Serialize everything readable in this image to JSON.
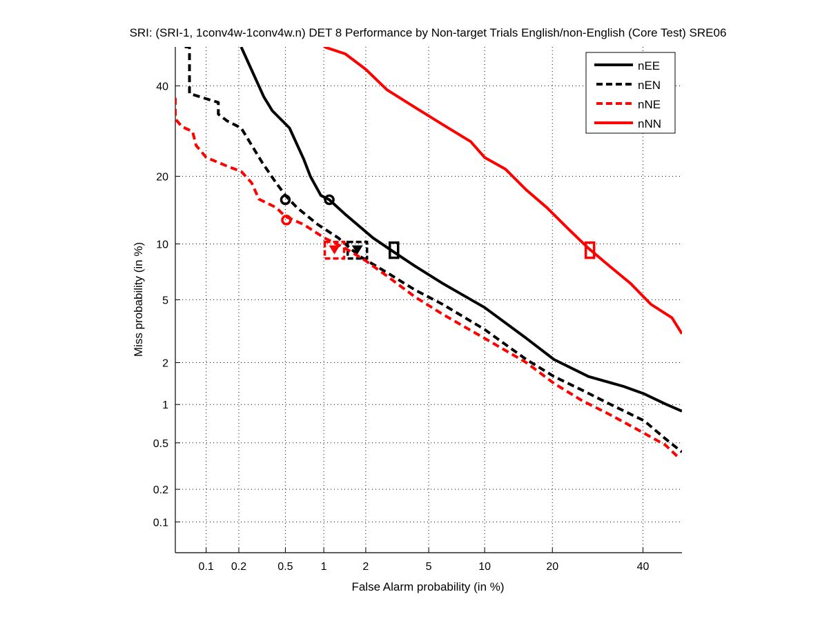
{
  "chart_data": {
    "type": "line",
    "title": "SRI: (SRI-1, 1conv4w-1conv4w.n) DET 8 Performance by Non-target Trials English/non-English (Core Test) SRE06",
    "xlabel": "False Alarm probability (in %)",
    "ylabel": "Miss probability (in %)",
    "scale": "normal-deviate",
    "xlim": [
      0.05,
      50
    ],
    "ylim": [
      0.05,
      50
    ],
    "grid": true,
    "x_ticks": [
      0.1,
      0.2,
      0.5,
      1,
      2,
      5,
      10,
      20,
      40
    ],
    "x_tick_labels": [
      "0.1",
      "0.2",
      "0.5",
      "1",
      "2",
      "5",
      "10",
      "20",
      "40"
    ],
    "y_ticks": [
      0.1,
      0.2,
      0.5,
      1,
      2,
      5,
      10,
      20,
      40
    ],
    "y_tick_labels": [
      "0.1",
      "0.2",
      "0.5",
      "1",
      "2",
      "5",
      "10",
      "20",
      "40"
    ],
    "legend_position": "top-right",
    "series": [
      {
        "name": "nEE",
        "color": "#000000",
        "style": "solid",
        "x": [
          0.21,
          0.33,
          0.39,
          0.54,
          0.7,
          0.79,
          0.95,
          1.1,
          1.44,
          2.24,
          3.07,
          4.14,
          6.0,
          10.0,
          15.6,
          20.3,
          27.2,
          35.2,
          40.3,
          45.7,
          50
        ],
        "y": [
          50,
          37.3,
          33.9,
          29.9,
          23.3,
          20.0,
          16.7,
          16.0,
          13.8,
          10.7,
          9.1,
          7.7,
          6.2,
          4.5,
          2.9,
          2.1,
          1.6,
          1.36,
          1.2,
          1.01,
          0.89
        ],
        "markers": [
          {
            "shape": "circle",
            "x": 1.1,
            "y": 16.0
          },
          {
            "shape": "square",
            "x": 3.07,
            "y": 9.3
          }
        ]
      },
      {
        "name": "nEN",
        "color": "#000000",
        "style": "dashed",
        "x": [
          0.062,
          0.069,
          0.069,
          0.1,
          0.13,
          0.13,
          0.157,
          0.21,
          0.26,
          0.32,
          0.42,
          0.51,
          0.62,
          0.9,
          1.28,
          1.8,
          2.77,
          4.14,
          6.0,
          10.0,
          15.6,
          20.3,
          25.8,
          31.9,
          40.3,
          45.7,
          50
        ],
        "y": [
          50,
          50,
          38.1,
          36.8,
          35.9,
          33.1,
          31.5,
          29.9,
          26.1,
          22.6,
          18.8,
          16.5,
          14.8,
          12.4,
          10.7,
          8.7,
          7.1,
          5.7,
          4.7,
          3.3,
          2.1,
          1.6,
          1.28,
          1.01,
          0.75,
          0.54,
          0.42
        ],
        "markers": [
          {
            "shape": "circle",
            "x": 0.5,
            "y": 16.0
          },
          {
            "shape": "triangle",
            "x": 1.75,
            "y": 9.3
          },
          {
            "shape": "square",
            "x": 1.75,
            "y": 9.3
          }
        ]
      },
      {
        "name": "nNE",
        "color": "#ff0000",
        "style": "dashed",
        "x": [
          0.05,
          0.05,
          0.058,
          0.074,
          0.08,
          0.1,
          0.157,
          0.21,
          0.26,
          0.3,
          0.42,
          0.5,
          0.7,
          1.01,
          1.44,
          2.0,
          2.77,
          4.14,
          6.0,
          10.0,
          15.6,
          20.3,
          25.8,
          31.9,
          38.6,
          45.7,
          49.4
        ],
        "y": [
          37,
          32.0,
          30.2,
          29.1,
          26.1,
          23.6,
          21.9,
          20.9,
          18.8,
          16.1,
          14.8,
          13.5,
          12.4,
          10.7,
          9.5,
          8.2,
          6.8,
          5.2,
          4.1,
          2.9,
          2.0,
          1.43,
          1.07,
          0.84,
          0.64,
          0.48,
          0.37
        ],
        "markers": [
          {
            "shape": "circle",
            "x": 0.51,
            "y": 13.0
          },
          {
            "shape": "triangle",
            "x": 1.2,
            "y": 9.3
          },
          {
            "shape": "square",
            "x": 1.2,
            "y": 9.3
          }
        ]
      },
      {
        "name": "nNN",
        "color": "#ff0000",
        "style": "solid",
        "x": [
          1.01,
          1.44,
          2.0,
          2.77,
          4.14,
          6.0,
          8.5,
          10.0,
          12.6,
          15.6,
          19.0,
          22.9,
          27.2,
          31.9,
          36.9,
          42.0,
          47.4,
          50
        ],
        "y": [
          50,
          48.2,
          44.2,
          39.0,
          34.7,
          30.7,
          26.9,
          23.6,
          21.3,
          17.6,
          14.8,
          11.9,
          9.5,
          7.7,
          6.2,
          4.7,
          3.9,
          3.1
        ],
        "markers": [
          {
            "shape": "square",
            "x": 27.5,
            "y": 9.3
          }
        ]
      }
    ]
  }
}
